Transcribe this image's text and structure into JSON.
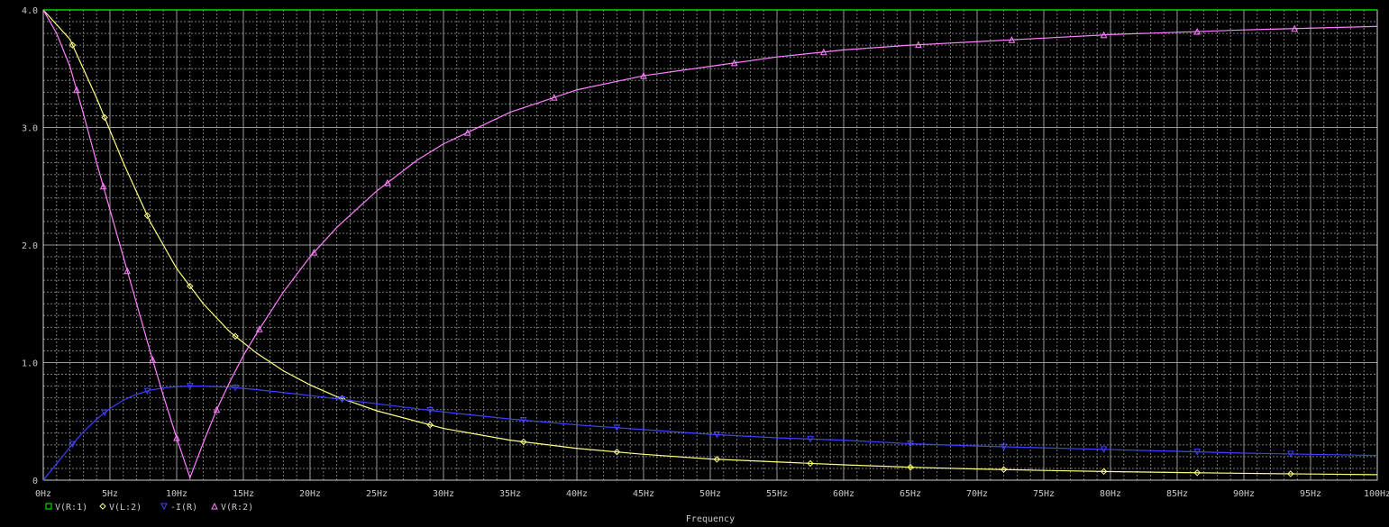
{
  "chart_data": {
    "type": "line",
    "xlabel": "Frequency",
    "ylabel": "",
    "xlim": [
      0,
      100
    ],
    "ylim": [
      0,
      4.0
    ],
    "x_ticks": [
      0,
      5,
      10,
      15,
      20,
      25,
      30,
      35,
      40,
      45,
      50,
      55,
      60,
      65,
      70,
      75,
      80,
      85,
      90,
      95,
      100
    ],
    "x_tick_labels": [
      "0Hz",
      "5Hz",
      "10Hz",
      "15Hz",
      "20Hz",
      "25Hz",
      "30Hz",
      "35Hz",
      "40Hz",
      "45Hz",
      "50Hz",
      "55Hz",
      "60Hz",
      "65Hz",
      "70Hz",
      "75Hz",
      "80Hz",
      "85Hz",
      "90Hz",
      "95Hz",
      "100Hz"
    ],
    "y_ticks": [
      0,
      1.0,
      2.0,
      3.0,
      4.0
    ],
    "y_tick_labels": [
      "0",
      "1.0",
      "2.0",
      "3.0",
      "4.0"
    ],
    "grid": true,
    "legend_position": "bottom-left",
    "series": [
      {
        "name": "V(R:1)",
        "color": "#00ff00",
        "marker": "square",
        "x": [
          0,
          100
        ],
        "y": [
          4.0,
          4.0
        ],
        "marker_x": []
      },
      {
        "name": "V(L:2)",
        "color": "#ffff80",
        "marker": "diamond",
        "x": [
          0,
          2,
          4,
          6,
          8,
          10,
          12,
          14,
          16,
          18,
          20,
          22,
          25,
          30,
          35,
          40,
          45,
          50,
          55,
          60,
          65,
          70,
          75,
          80,
          85,
          90,
          95,
          100
        ],
        "y": [
          4.0,
          3.75,
          3.25,
          2.7,
          2.2,
          1.8,
          1.5,
          1.26,
          1.08,
          0.93,
          0.81,
          0.71,
          0.59,
          0.44,
          0.34,
          0.27,
          0.22,
          0.18,
          0.155,
          0.13,
          0.11,
          0.095,
          0.083,
          0.073,
          0.065,
          0.058,
          0.052,
          0.047
        ],
        "marker_x": [
          2.2,
          4.6,
          7.8,
          11,
          14.4,
          22.4,
          29,
          36,
          43,
          50.5,
          57.5,
          65,
          72,
          79.5,
          86.5,
          93.5
        ]
      },
      {
        "name": "-I(R)",
        "color": "#4040ff",
        "marker": "triangle-down",
        "x": [
          0,
          1,
          2,
          3,
          4,
          5,
          6,
          7,
          8,
          9,
          10,
          11,
          12,
          14,
          16,
          18,
          20,
          25,
          30,
          35,
          40,
          45,
          50,
          55,
          60,
          65,
          70,
          75,
          80,
          85,
          90,
          95,
          100
        ],
        "y": [
          0,
          0.14,
          0.28,
          0.41,
          0.52,
          0.61,
          0.68,
          0.73,
          0.765,
          0.785,
          0.795,
          0.8,
          0.8,
          0.79,
          0.77,
          0.745,
          0.72,
          0.65,
          0.58,
          0.52,
          0.47,
          0.43,
          0.39,
          0.36,
          0.34,
          0.31,
          0.29,
          0.275,
          0.26,
          0.245,
          0.23,
          0.22,
          0.21
        ],
        "marker_x": [
          2.2,
          4.6,
          7.8,
          11,
          14.4,
          22.4,
          29,
          36,
          43,
          50.5,
          57.5,
          65,
          72,
          79.5,
          86.5,
          93.5
        ]
      },
      {
        "name": "V(R:2)",
        "color": "#ff80ff",
        "marker": "triangle-up",
        "x": [
          0,
          1,
          2,
          3,
          4,
          5,
          6,
          7,
          8,
          9,
          10,
          11,
          12,
          13,
          14,
          15,
          16,
          18,
          20,
          22,
          25,
          28,
          30,
          35,
          40,
          45,
          50,
          55,
          60,
          65,
          70,
          75,
          80,
          85,
          90,
          95,
          100
        ],
        "y": [
          4.0,
          3.8,
          3.52,
          3.12,
          2.7,
          2.3,
          1.9,
          1.5,
          1.1,
          0.72,
          0.36,
          0.02,
          0.32,
          0.6,
          0.84,
          1.06,
          1.25,
          1.6,
          1.9,
          2.15,
          2.46,
          2.72,
          2.86,
          3.13,
          3.32,
          3.44,
          3.52,
          3.6,
          3.66,
          3.7,
          3.73,
          3.76,
          3.79,
          3.81,
          3.83,
          3.845,
          3.86
        ],
        "marker_x": [
          2.5,
          4.5,
          6.3,
          8.2,
          10,
          13,
          16.2,
          20.3,
          25.8,
          31.8,
          38.3,
          45,
          51.8,
          58.5,
          65.6,
          72.6,
          79.5,
          86.5,
          93.8
        ]
      }
    ]
  }
}
